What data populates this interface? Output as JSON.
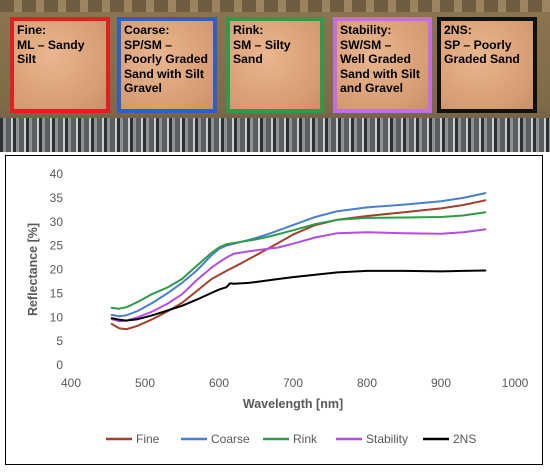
{
  "samples": [
    {
      "lines": [
        "Fine:",
        "ML – Sandy",
        "Silt"
      ],
      "border_color": "#e02020"
    },
    {
      "lines": [
        "Coarse:",
        "SP/SM –",
        "Poorly Graded",
        "Sand with Silt",
        "Gravel"
      ],
      "border_color": "#2f5fc4"
    },
    {
      "lines": [
        "Rink:",
        "SM – Silty",
        "Sand"
      ],
      "border_color": "#2e9a4a"
    },
    {
      "lines": [
        "Stability:",
        "SW/SM –",
        "Well Graded",
        "Sand with Silt",
        "and Gravel"
      ],
      "border_color": "#c070d8"
    },
    {
      "lines": [
        "2NS:",
        "SP – Poorly",
        "Graded Sand"
      ],
      "border_color": "#111111"
    }
  ],
  "chart_data": {
    "type": "line",
    "xlabel": "Wavelength [nm]",
    "ylabel": "Reflectance [%]",
    "xlim": [
      400,
      1000
    ],
    "ylim": [
      0,
      40
    ],
    "xticks": [
      400,
      500,
      600,
      700,
      800,
      900,
      1000
    ],
    "yticks": [
      0,
      5,
      10,
      15,
      20,
      25,
      30,
      35,
      40
    ],
    "grid": false,
    "legend_position": "bottom",
    "series": [
      {
        "name": "Fine",
        "color": "#a0412d",
        "x": [
          455,
          465,
          475,
          490,
          510,
          530,
          550,
          570,
          590,
          610,
          630,
          650,
          670,
          700,
          730,
          760,
          800,
          850,
          900,
          930,
          960
        ],
        "y": [
          8.6,
          7.7,
          7.5,
          8.2,
          9.6,
          11.2,
          13.0,
          15.5,
          18.0,
          19.7,
          21.3,
          23.0,
          24.7,
          27.3,
          29.3,
          30.4,
          31.2,
          32.0,
          32.8,
          33.5,
          34.5
        ]
      },
      {
        "name": "Coarse",
        "color": "#4a7fcf",
        "x": [
          455,
          465,
          475,
          490,
          510,
          530,
          550,
          570,
          590,
          600,
          610,
          630,
          650,
          670,
          700,
          730,
          760,
          800,
          850,
          900,
          930,
          960
        ],
        "y": [
          10.5,
          10.2,
          10.4,
          11.3,
          13.0,
          15.0,
          17.2,
          19.8,
          23.0,
          24.3,
          25.0,
          25.8,
          26.6,
          27.6,
          29.3,
          31.0,
          32.2,
          33.0,
          33.6,
          34.3,
          35.0,
          36.0
        ]
      },
      {
        "name": "Rink",
        "color": "#2e9a4a",
        "x": [
          455,
          465,
          475,
          490,
          510,
          530,
          550,
          570,
          590,
          600,
          610,
          630,
          650,
          670,
          700,
          730,
          760,
          800,
          850,
          900,
          930,
          960
        ],
        "y": [
          12.0,
          11.8,
          12.1,
          13.2,
          14.9,
          16.2,
          18.0,
          20.8,
          23.5,
          24.6,
          25.3,
          25.8,
          26.3,
          27.0,
          28.2,
          29.5,
          30.4,
          30.8,
          30.9,
          31.0,
          31.3,
          32.0
        ]
      },
      {
        "name": "Stability",
        "color": "#b04fe0",
        "x": [
          455,
          465,
          475,
          490,
          510,
          530,
          550,
          570,
          590,
          600,
          610,
          620,
          640,
          660,
          680,
          700,
          730,
          760,
          800,
          850,
          900,
          930,
          960
        ],
        "y": [
          9.6,
          9.2,
          9.3,
          10.0,
          11.2,
          12.8,
          14.8,
          17.8,
          20.4,
          21.5,
          22.5,
          23.3,
          23.8,
          24.2,
          24.6,
          25.4,
          26.7,
          27.6,
          27.8,
          27.6,
          27.5,
          27.8,
          28.4
        ]
      },
      {
        "name": "2NS",
        "color": "#000000",
        "x": [
          455,
          465,
          475,
          490,
          510,
          530,
          550,
          570,
          590,
          600,
          610,
          615,
          620,
          640,
          660,
          680,
          700,
          730,
          760,
          800,
          850,
          900,
          930,
          960
        ],
        "y": [
          9.8,
          9.5,
          9.3,
          9.6,
          10.4,
          11.4,
          12.4,
          13.7,
          15.1,
          15.8,
          16.3,
          17.1,
          17.0,
          17.2,
          17.6,
          18.0,
          18.4,
          18.9,
          19.4,
          19.7,
          19.7,
          19.6,
          19.7,
          19.8
        ]
      }
    ]
  }
}
